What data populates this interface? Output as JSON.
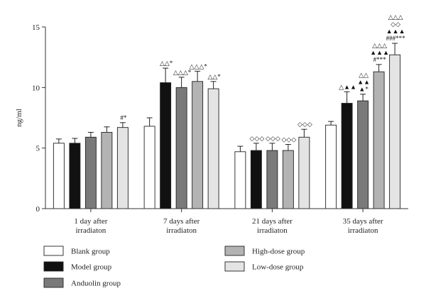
{
  "chart_data": {
    "type": "bar",
    "ylabel": "ng/ml",
    "xlabel": "",
    "ylim": [
      0,
      15
    ],
    "yticks": [
      0,
      5,
      10,
      15
    ],
    "categories": [
      [
        "1 day after",
        "irradiaton"
      ],
      [
        "7 days after",
        "irradiaton"
      ],
      [
        "21 days after",
        "irradiaton"
      ],
      [
        "35 days after",
        "irradiaton"
      ]
    ],
    "series": [
      {
        "name": "Blank group",
        "color": "#ffffff",
        "values": [
          5.4,
          6.8,
          4.7,
          6.9
        ],
        "errors": [
          0.35,
          0.7,
          0.45,
          0.3
        ]
      },
      {
        "name": "Model group",
        "color": "#111111",
        "values": [
          5.4,
          10.4,
          4.8,
          8.7
        ],
        "errors": [
          0.4,
          1.2,
          0.6,
          0.95
        ]
      },
      {
        "name": "Anduolin group",
        "color": "#7a7a7a",
        "values": [
          5.9,
          10.0,
          4.8,
          8.9
        ],
        "errors": [
          0.4,
          0.85,
          0.6,
          0.55
        ]
      },
      {
        "name": "High-dose group",
        "color": "#b3b3b3",
        "values": [
          6.3,
          10.5,
          4.8,
          11.3
        ],
        "errors": [
          0.45,
          0.85,
          0.5,
          0.6
        ]
      },
      {
        "name": "Low-dose group",
        "color": "#e4e4e4",
        "values": [
          6.7,
          9.9,
          5.9,
          12.7
        ],
        "errors": [
          0.4,
          0.6,
          0.65,
          0.95
        ]
      }
    ],
    "annotations": [
      [
        [],
        [],
        [],
        [],
        [
          "#*"
        ]
      ],
      [
        [],
        [
          "△△*"
        ],
        [
          "△△△*"
        ],
        [
          "△△△*"
        ],
        [
          "△△*"
        ]
      ],
      [
        [],
        [
          "◇◇◇"
        ],
        [
          "◇◇◇"
        ],
        [
          "◇◇◇"
        ],
        [
          "◇◇◇"
        ]
      ],
      [
        [],
        [
          "△▲▲"
        ],
        [
          "▲*",
          "▲▲",
          "△△"
        ],
        [
          "#***",
          "▲▲▲",
          "△△△"
        ],
        [
          "###***",
          "▲▲▲",
          "◇◇",
          "△△△"
        ]
      ]
    ],
    "legend_order": [
      0,
      1,
      2,
      3,
      4
    ]
  }
}
